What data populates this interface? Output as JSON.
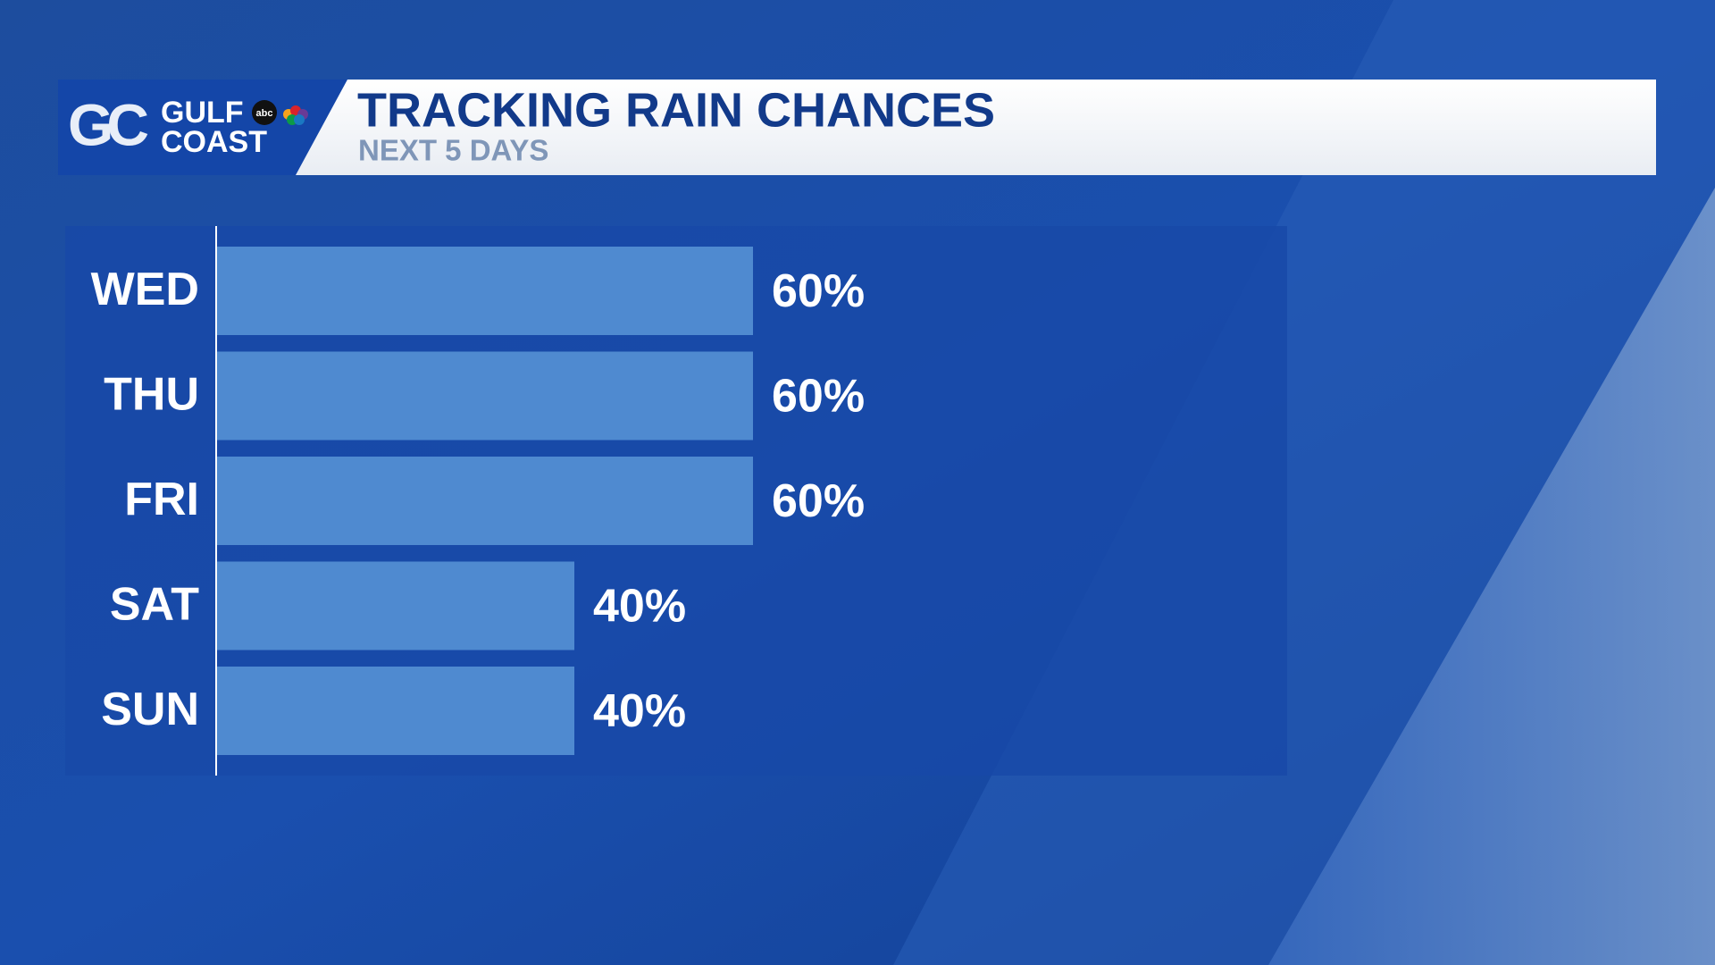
{
  "logo": {
    "mark": "GC",
    "line1": "GULF",
    "line2": "COAST",
    "network": "abc"
  },
  "chart_data": {
    "type": "bar",
    "orientation": "horizontal",
    "title": "TRACKING RAIN CHANCES",
    "subtitle": "NEXT 5 DAYS",
    "categories": [
      "WED",
      "THU",
      "FRI",
      "SAT",
      "SUN"
    ],
    "values": [
      60,
      60,
      60,
      40,
      40
    ],
    "value_labels": [
      "60%",
      "60%",
      "60%",
      "40%",
      "40%"
    ],
    "color": "#4f8ad0"
  }
}
